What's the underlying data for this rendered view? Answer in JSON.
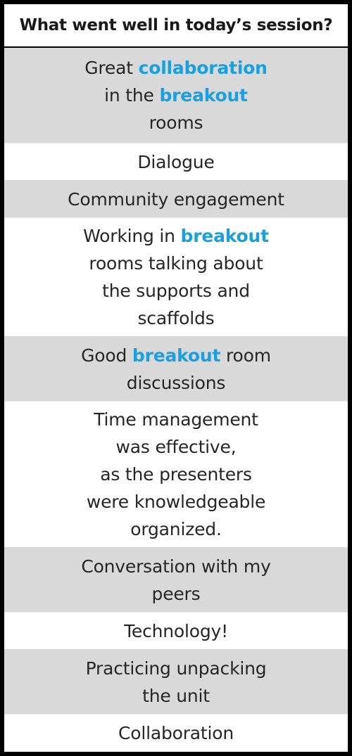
{
  "header": {
    "title": "What went well in today’s session?"
  },
  "rows": [
    {
      "lines": [
        [
          "Great ",
          "collaboration"
        ],
        [
          "in the ",
          "breakout"
        ],
        [
          "rooms"
        ]
      ]
    },
    {
      "lines": [
        [
          "Dialogue"
        ]
      ]
    },
    {
      "lines": [
        [
          "Community engagement"
        ]
      ]
    },
    {
      "lines": [
        [
          "Working in ",
          "breakout"
        ],
        [
          "rooms talking about"
        ],
        [
          "the supports and"
        ],
        [
          "scaffolds"
        ]
      ]
    },
    {
      "lines": [
        [
          "Good ",
          "breakout",
          " room"
        ],
        [
          "discussions"
        ]
      ]
    },
    {
      "lines": [
        [
          "Time management"
        ],
        [
          "was effective,"
        ],
        [
          "as the presenters"
        ],
        [
          "were knowledgeable"
        ],
        [
          "organized."
        ]
      ]
    },
    {
      "lines": [
        [
          "Conversation with my"
        ],
        [
          "peers"
        ]
      ]
    },
    {
      "lines": [
        [
          "Technology!"
        ]
      ]
    },
    {
      "lines": [
        [
          "Practicing unpacking"
        ],
        [
          "the unit"
        ]
      ]
    },
    {
      "lines": [
        [
          "Collaboration"
        ]
      ]
    }
  ],
  "colors": {
    "highlight": "#1aa0e0",
    "shaded_row": "#d9d9d9",
    "border": "#000000"
  }
}
